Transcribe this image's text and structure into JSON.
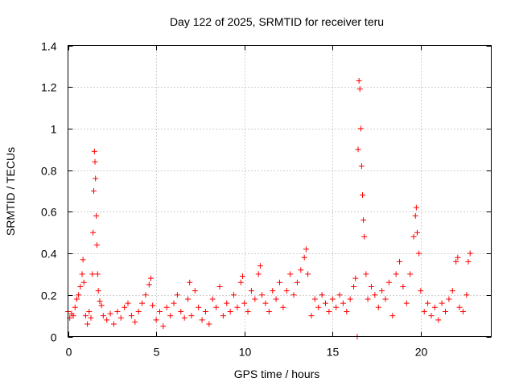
{
  "chart_data": {
    "type": "scatter",
    "title": "Day 122 of 2025, SRMTID for receiver teru",
    "xlabel": "GPS time / hours",
    "ylabel": "SRMTID / TECUs",
    "xlim": [
      0,
      24
    ],
    "ylim": [
      0,
      1.4
    ],
    "xticks": [
      0,
      5,
      10,
      15,
      20
    ],
    "xtick_labels": [
      "0",
      "5",
      "10",
      "15",
      "20"
    ],
    "yticks": [
      0,
      0.2,
      0.4,
      0.6,
      0.8,
      1.0,
      1.2,
      1.4
    ],
    "ytick_labels": [
      "0",
      "0.2",
      "0.4",
      "0.6",
      "0.8",
      "1",
      "1.2",
      "1.4"
    ],
    "grid": true,
    "marker": "+",
    "series": [
      {
        "name": "SRMTID",
        "color": "#ff0000",
        "points": [
          [
            0.0,
            0.12
          ],
          [
            0.1,
            0.09
          ],
          [
            0.2,
            0.11
          ],
          [
            0.3,
            0.1
          ],
          [
            0.4,
            0.14
          ],
          [
            0.5,
            0.18
          ],
          [
            0.6,
            0.2
          ],
          [
            0.7,
            0.24
          ],
          [
            0.8,
            0.3
          ],
          [
            0.85,
            0.37
          ],
          [
            0.9,
            0.26
          ],
          [
            1.0,
            0.1
          ],
          [
            1.1,
            0.06
          ],
          [
            1.2,
            0.12
          ],
          [
            1.3,
            0.09
          ],
          [
            1.38,
            0.3
          ],
          [
            1.42,
            0.5
          ],
          [
            1.46,
            0.7
          ],
          [
            1.5,
            0.89
          ],
          [
            1.53,
            0.84
          ],
          [
            1.56,
            0.76
          ],
          [
            1.6,
            0.58
          ],
          [
            1.64,
            0.44
          ],
          [
            1.68,
            0.3
          ],
          [
            1.72,
            0.22
          ],
          [
            1.8,
            0.17
          ],
          [
            1.9,
            0.15
          ],
          [
            2.0,
            0.1
          ],
          [
            2.2,
            0.08
          ],
          [
            2.4,
            0.11
          ],
          [
            2.6,
            0.06
          ],
          [
            2.8,
            0.12
          ],
          [
            3.0,
            0.09
          ],
          [
            3.2,
            0.14
          ],
          [
            3.4,
            0.16
          ],
          [
            3.6,
            0.1
          ],
          [
            3.8,
            0.07
          ],
          [
            4.0,
            0.12
          ],
          [
            4.2,
            0.16
          ],
          [
            4.4,
            0.2
          ],
          [
            4.6,
            0.25
          ],
          [
            4.7,
            0.28
          ],
          [
            4.8,
            0.15
          ],
          [
            5.0,
            0.08
          ],
          [
            5.2,
            0.12
          ],
          [
            5.4,
            0.05
          ],
          [
            5.6,
            0.14
          ],
          [
            5.8,
            0.1
          ],
          [
            6.0,
            0.16
          ],
          [
            6.2,
            0.2
          ],
          [
            6.4,
            0.12
          ],
          [
            6.6,
            0.09
          ],
          [
            6.8,
            0.18
          ],
          [
            6.9,
            0.26
          ],
          [
            7.0,
            0.1
          ],
          [
            7.2,
            0.22
          ],
          [
            7.4,
            0.14
          ],
          [
            7.6,
            0.08
          ],
          [
            7.8,
            0.12
          ],
          [
            8.0,
            0.06
          ],
          [
            8.2,
            0.18
          ],
          [
            8.4,
            0.14
          ],
          [
            8.6,
            0.24
          ],
          [
            8.8,
            0.1
          ],
          [
            9.0,
            0.16
          ],
          [
            9.2,
            0.12
          ],
          [
            9.4,
            0.2
          ],
          [
            9.6,
            0.14
          ],
          [
            9.8,
            0.26
          ],
          [
            9.9,
            0.29
          ],
          [
            10.0,
            0.16
          ],
          [
            10.2,
            0.12
          ],
          [
            10.4,
            0.22
          ],
          [
            10.6,
            0.18
          ],
          [
            10.8,
            0.3
          ],
          [
            10.9,
            0.34
          ],
          [
            11.0,
            0.2
          ],
          [
            11.2,
            0.16
          ],
          [
            11.4,
            0.12
          ],
          [
            11.6,
            0.22
          ],
          [
            11.8,
            0.18
          ],
          [
            12.0,
            0.26
          ],
          [
            12.2,
            0.14
          ],
          [
            12.4,
            0.22
          ],
          [
            12.6,
            0.3
          ],
          [
            12.8,
            0.2
          ],
          [
            13.0,
            0.26
          ],
          [
            13.2,
            0.32
          ],
          [
            13.4,
            0.38
          ],
          [
            13.5,
            0.42
          ],
          [
            13.6,
            0.3
          ],
          [
            13.8,
            0.1
          ],
          [
            14.0,
            0.18
          ],
          [
            14.2,
            0.14
          ],
          [
            14.4,
            0.2
          ],
          [
            14.6,
            0.16
          ],
          [
            14.8,
            0.12
          ],
          [
            15.0,
            0.18
          ],
          [
            15.2,
            0.14
          ],
          [
            15.4,
            0.2
          ],
          [
            15.6,
            0.16
          ],
          [
            15.8,
            0.12
          ],
          [
            16.0,
            0.18
          ],
          [
            16.2,
            0.24
          ],
          [
            16.3,
            0.28
          ],
          [
            16.4,
            0.0
          ],
          [
            16.45,
            0.9
          ],
          [
            16.5,
            1.23
          ],
          [
            16.55,
            1.19
          ],
          [
            16.6,
            1.0
          ],
          [
            16.65,
            0.82
          ],
          [
            16.7,
            0.68
          ],
          [
            16.75,
            0.56
          ],
          [
            16.8,
            0.48
          ],
          [
            16.9,
            0.3
          ],
          [
            17.0,
            0.18
          ],
          [
            17.2,
            0.24
          ],
          [
            17.4,
            0.2
          ],
          [
            17.6,
            0.14
          ],
          [
            17.8,
            0.22
          ],
          [
            18.0,
            0.18
          ],
          [
            18.2,
            0.26
          ],
          [
            18.4,
            0.1
          ],
          [
            18.6,
            0.3
          ],
          [
            18.8,
            0.36
          ],
          [
            19.0,
            0.24
          ],
          [
            19.2,
            0.16
          ],
          [
            19.4,
            0.3
          ],
          [
            19.6,
            0.48
          ],
          [
            19.7,
            0.58
          ],
          [
            19.75,
            0.62
          ],
          [
            19.8,
            0.5
          ],
          [
            19.9,
            0.4
          ],
          [
            20.0,
            0.22
          ],
          [
            20.2,
            0.12
          ],
          [
            20.4,
            0.16
          ],
          [
            20.6,
            0.1
          ],
          [
            20.8,
            0.14
          ],
          [
            21.0,
            0.08
          ],
          [
            21.2,
            0.16
          ],
          [
            21.4,
            0.12
          ],
          [
            21.6,
            0.18
          ],
          [
            21.8,
            0.22
          ],
          [
            22.0,
            0.36
          ],
          [
            22.1,
            0.38
          ],
          [
            22.2,
            0.14
          ],
          [
            22.4,
            0.12
          ],
          [
            22.6,
            0.2
          ],
          [
            22.7,
            0.36
          ],
          [
            22.8,
            0.4
          ]
        ]
      }
    ]
  }
}
